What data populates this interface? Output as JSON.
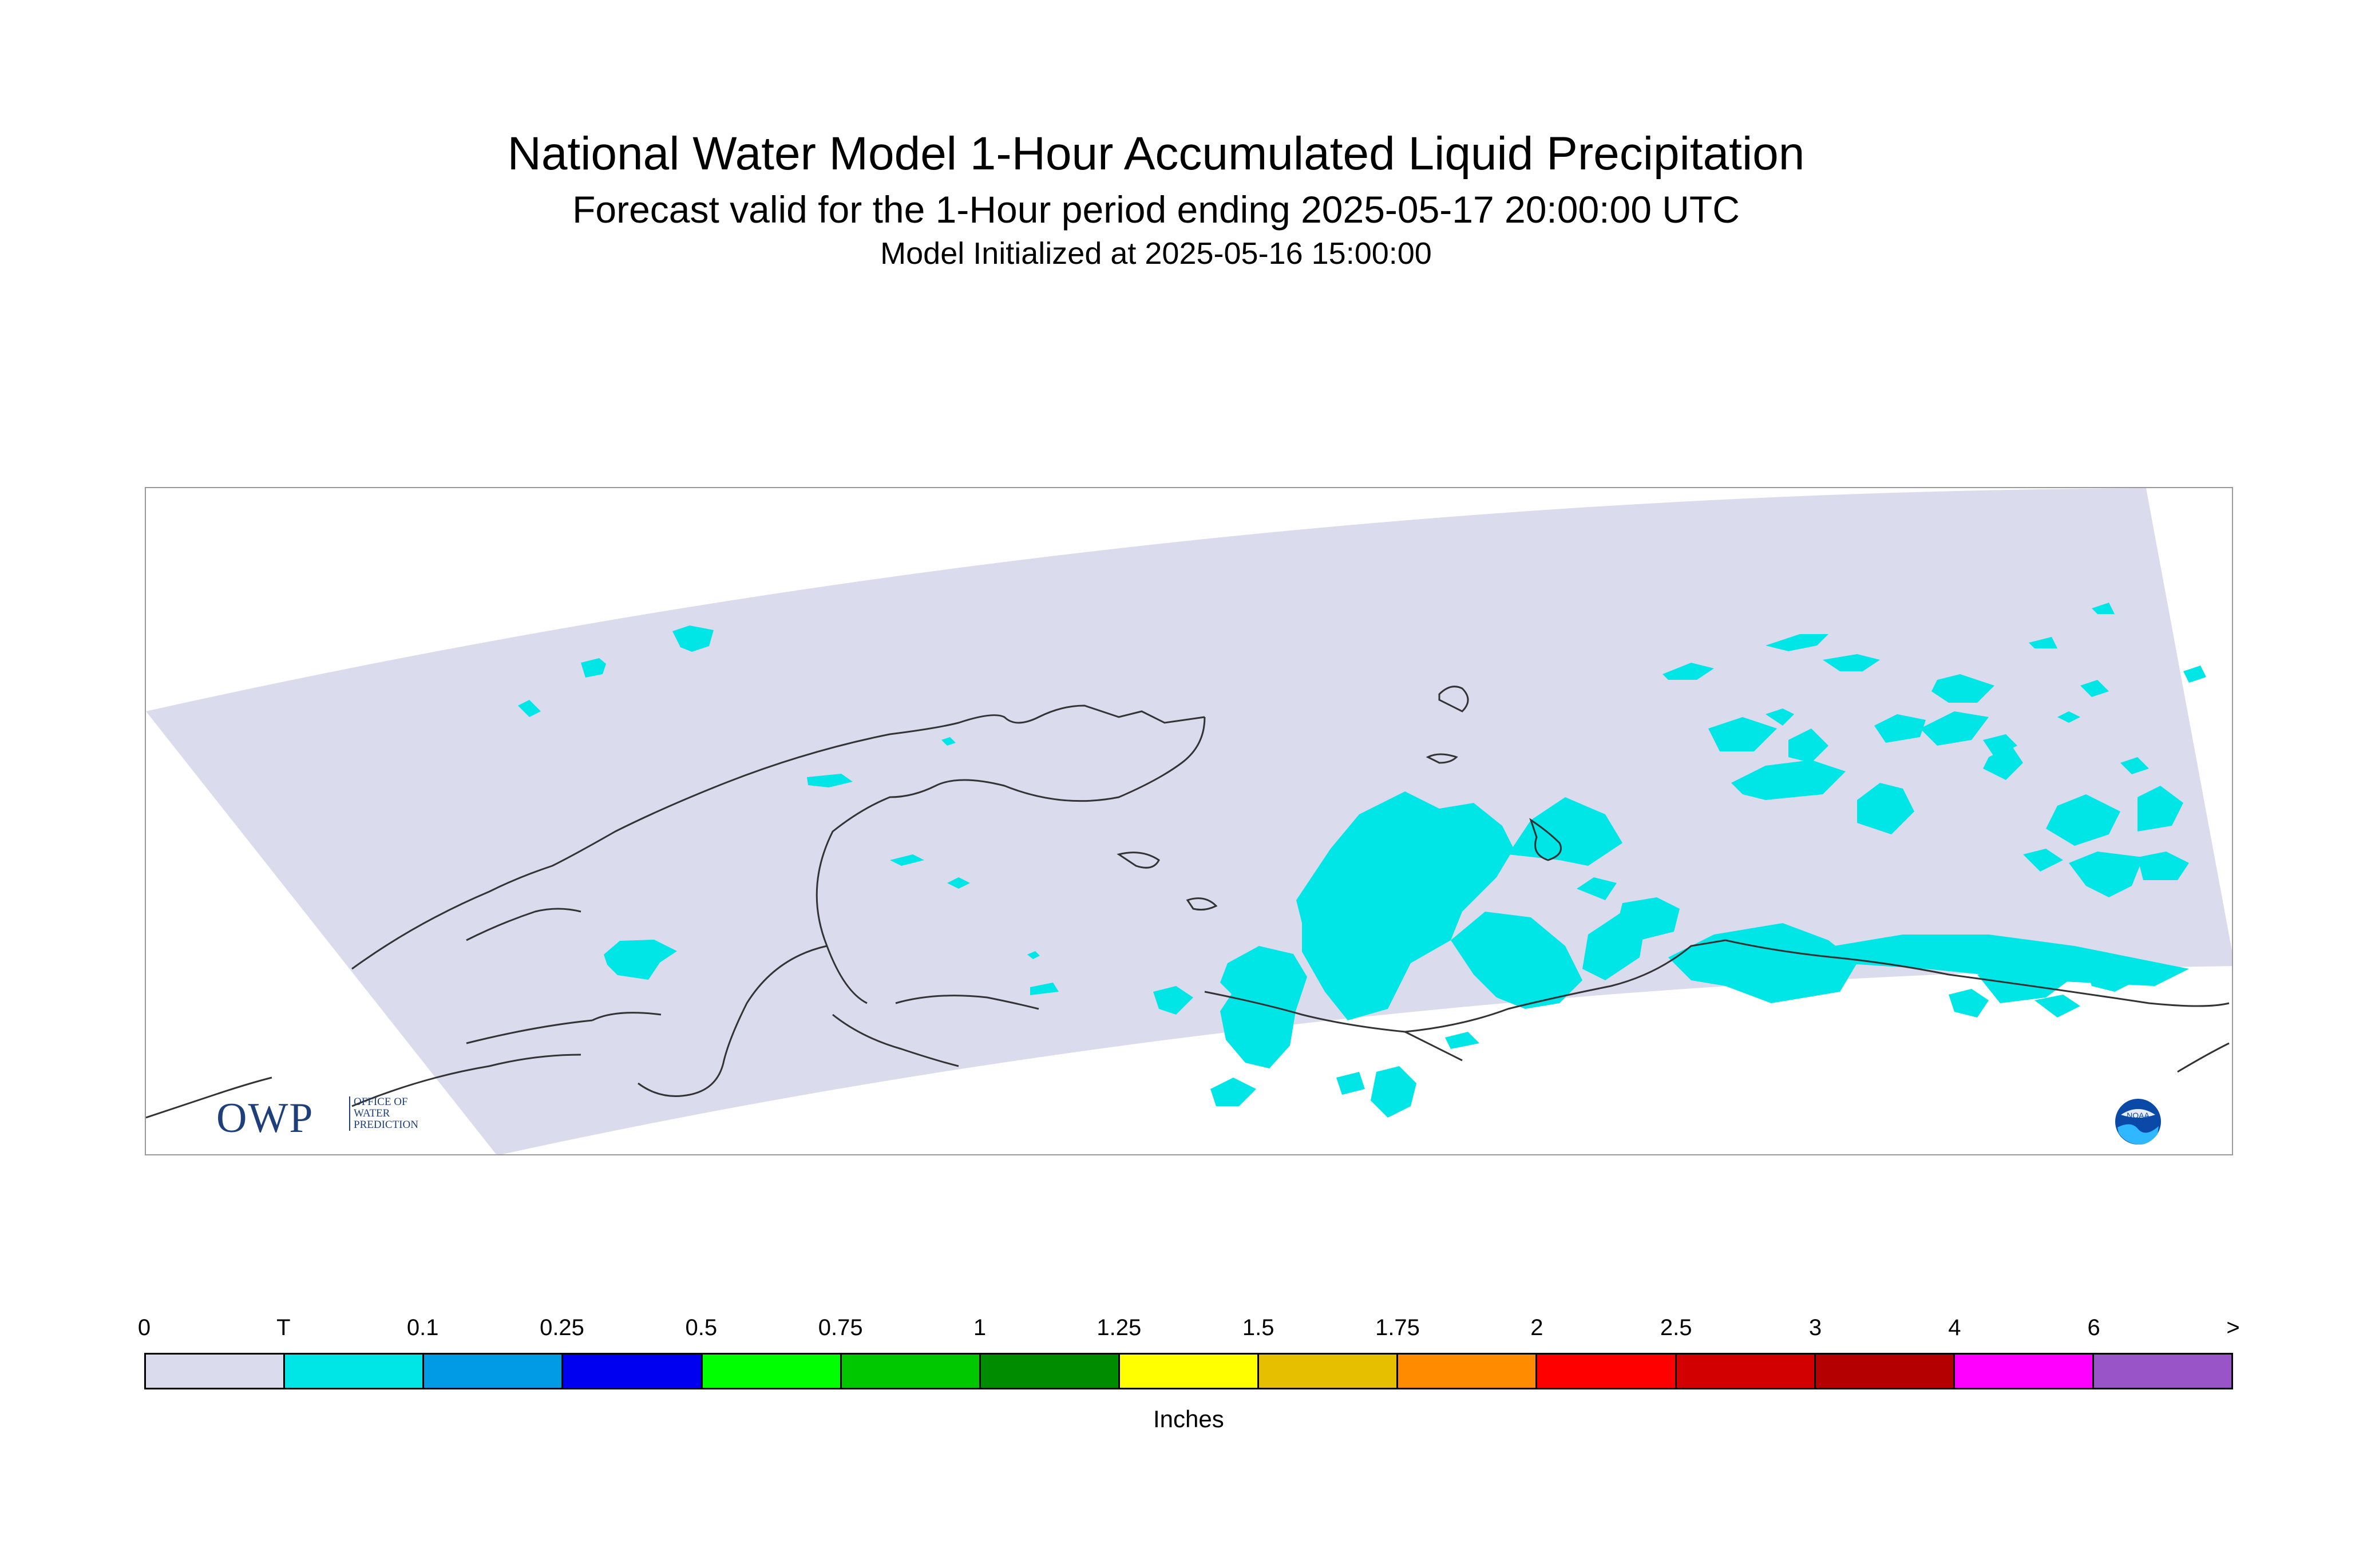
{
  "title": "National Water Model 1-Hour Accumulated Liquid Precipitation",
  "subtitle": "Forecast valid for the 1-Hour period ending 2025-05-17 20:00:00 UTC",
  "init_line": "Model Initialized at 2025-05-16 15:00:00",
  "map": {
    "domain_fill_color": "#dbdbee",
    "precip_color": "#00e5e5",
    "coastline_color": "#333333"
  },
  "logos": {
    "owp_letters": "OWP",
    "owp_subtext": "OFFICE OF\nWATER\nPREDICTION",
    "noaa_text": "NOAA"
  },
  "legend": {
    "units": "Inches",
    "labels": [
      "0",
      "T",
      "0.1",
      "0.25",
      "0.5",
      "0.75",
      "1",
      "1.25",
      "1.5",
      "1.75",
      "2",
      "2.5",
      "3",
      "4",
      "6",
      ">"
    ],
    "colors": [
      "#dbdbee",
      "#00e5e5",
      "#009ae5",
      "#0000f0",
      "#00ff00",
      "#00c800",
      "#008c00",
      "#ffff00",
      "#e6c000",
      "#ff8c00",
      "#ff0000",
      "#d20000",
      "#b40000",
      "#ff00ff",
      "#9955c8"
    ]
  }
}
